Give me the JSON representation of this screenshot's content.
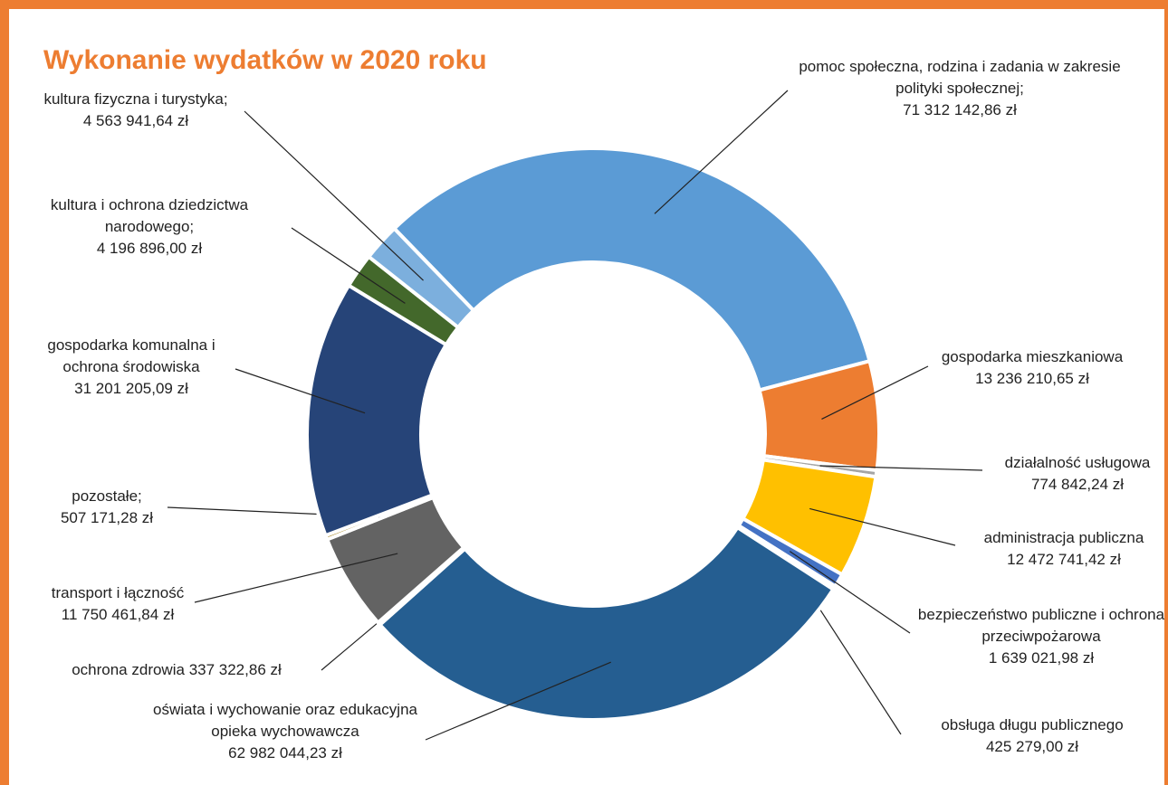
{
  "chart_data": {
    "type": "donut",
    "title": "Wykonanie wydatków w 2020 roku",
    "categories": [
      "pomoc społeczna, rodzina i zadania w zakresie polityki społecznej;",
      "gospodarka mieszkaniowa",
      "działalność usługowa",
      "administracja publiczna",
      "bezpieczeństwo publiczne i ochrona przeciwpożarowa",
      "obsługa długu publicznego",
      "oświata i wychowanie oraz edukacyjna opieka wychowawcza",
      "ochrona zdrowia",
      "transport i łączność",
      "pozostałe;",
      "gospodarka komunalna i ochrona środowiska",
      "kultura i ochrona dziedzictwa narodowego;",
      "kultura fizyczna i turystyka;"
    ],
    "values": [
      71312142.86,
      13236210.65,
      774842.24,
      12472741.42,
      1639021.98,
      425279.0,
      62982044.23,
      337322.86,
      11750461.84,
      507171.28,
      31201205.09,
      4196896.0,
      4563941.64
    ],
    "value_labels": [
      "71 312 142,86 zł",
      "13 236 210,65 zł",
      "774 842,24 zł",
      "12 472 741,42 zł",
      "1 639 021,98 zł",
      "425 279,00 zł",
      "62 982 044,23 zł",
      "337 322,86 zł",
      "11 750 461,84 zł",
      "507 171,28 zł",
      "31 201 205,09 zł",
      "4 196 896,00 zł",
      "4 563 941,64 zł"
    ],
    "colors": [
      "#5b9bd5",
      "#ed7d31",
      "#a5a5a5",
      "#ffc000",
      "#4472c4",
      "#70ad47",
      "#255e91",
      "#9e480e",
      "#636363",
      "#997300",
      "#264478",
      "#43682b",
      "#7cafdd"
    ]
  }
}
